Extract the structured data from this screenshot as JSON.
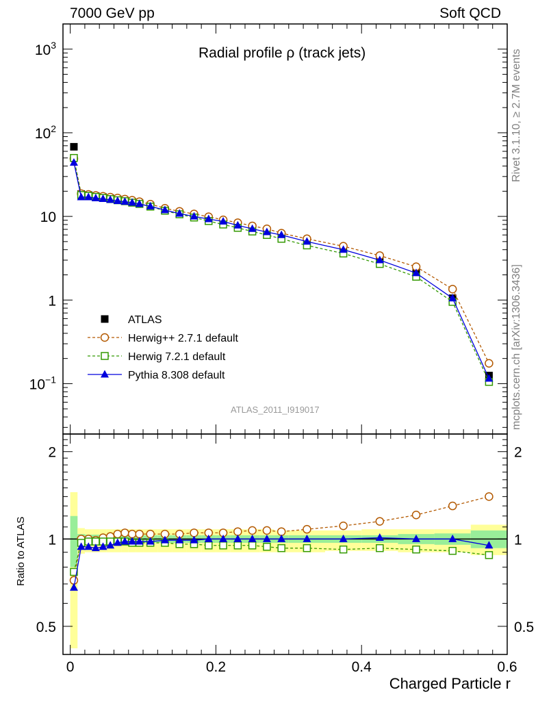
{
  "header": {
    "left": "7000 GeV pp",
    "right": "Soft QCD"
  },
  "side_texts": {
    "rivet": "Rivet 3.1.10, ≥ 2.7M events",
    "source": "mcplots.cern.ch [arXiv:1306.3436]"
  },
  "chart_data": [
    {
      "type": "line",
      "title": "Radial profile ρ (track jets)",
      "analysis_label": "ATLAS_2011_I919017",
      "xlabel": "",
      "ylabel": "",
      "yscale": "log",
      "ylim": [
        0.025,
        2000
      ],
      "xlim": [
        -0.01,
        0.6
      ],
      "legend_position": "bottom-left",
      "x": [
        0.005,
        0.015,
        0.025,
        0.035,
        0.045,
        0.055,
        0.065,
        0.075,
        0.085,
        0.095,
        0.11,
        0.13,
        0.15,
        0.17,
        0.19,
        0.21,
        0.23,
        0.25,
        0.27,
        0.29,
        0.325,
        0.375,
        0.425,
        0.475,
        0.525,
        0.575
      ],
      "series": [
        {
          "name": "ATLAS",
          "color": "#000000",
          "marker": "square-filled",
          "values": [
            68,
            18.5,
            18.0,
            17.5,
            17.0,
            16.5,
            16.0,
            15.5,
            15.0,
            14.5,
            13.5,
            12.0,
            11.0,
            10.2,
            9.4,
            8.7,
            7.9,
            7.2,
            6.6,
            6.0,
            5.0,
            4.0,
            3.0,
            2.1,
            1.05,
            0.125
          ]
        },
        {
          "name": "Herwig++ 2.7.1 default",
          "color": "#b35900",
          "marker": "circle-open",
          "dash": true,
          "values": [
            49,
            18.7,
            18.3,
            17.8,
            17.4,
            17.0,
            16.6,
            16.1,
            15.6,
            15.0,
            14.0,
            12.5,
            11.5,
            10.7,
            9.9,
            9.1,
            8.4,
            7.7,
            7.1,
            6.3,
            5.4,
            4.4,
            3.4,
            2.5,
            1.35,
            0.175
          ]
        },
        {
          "name": "Herwig 7.2.1 default",
          "color": "#339900",
          "marker": "square-open",
          "dash": true,
          "values": [
            50,
            18.0,
            17.6,
            17.1,
            16.6,
            16.1,
            15.6,
            15.2,
            14.6,
            14.1,
            13.1,
            11.7,
            10.6,
            9.7,
            8.8,
            8.0,
            7.3,
            6.6,
            6.0,
            5.4,
            4.5,
            3.6,
            2.7,
            1.9,
            0.95,
            0.105
          ]
        },
        {
          "name": "Pythia 8.308 default",
          "color": "#0000dd",
          "marker": "triangle-filled",
          "values": [
            44,
            17.0,
            17.0,
            16.5,
            16.2,
            15.8,
            15.3,
            15.0,
            14.6,
            14.1,
            13.2,
            11.9,
            10.8,
            10.0,
            9.3,
            8.7,
            7.8,
            7.1,
            6.5,
            6.0,
            5.0,
            4.0,
            3.0,
            2.1,
            1.05,
            0.115
          ]
        }
      ]
    },
    {
      "type": "line",
      "ylabel": "Ratio to ATLAS",
      "xlabel": "Charged Particle r",
      "yscale": "log",
      "ylim": [
        0.4,
        2.3
      ],
      "yticks": [
        0.5,
        1,
        2
      ],
      "xticks": [
        0,
        0.2,
        0.4,
        0.6
      ],
      "xlim": [
        -0.01,
        0.6
      ],
      "x": [
        0.005,
        0.015,
        0.025,
        0.035,
        0.045,
        0.055,
        0.065,
        0.075,
        0.085,
        0.095,
        0.11,
        0.13,
        0.15,
        0.17,
        0.19,
        0.21,
        0.23,
        0.25,
        0.27,
        0.29,
        0.325,
        0.375,
        0.425,
        0.475,
        0.525,
        0.575
      ],
      "bands": {
        "edges": [
          0,
          0.01,
          0.02,
          0.03,
          0.04,
          0.05,
          0.06,
          0.07,
          0.08,
          0.09,
          0.1,
          0.12,
          0.14,
          0.16,
          0.18,
          0.2,
          0.22,
          0.24,
          0.26,
          0.28,
          0.3,
          0.35,
          0.4,
          0.45,
          0.5,
          0.55,
          0.6
        ],
        "stat_lo": [
          0.8,
          0.96,
          0.965,
          0.965,
          0.965,
          0.965,
          0.965,
          0.97,
          0.97,
          0.97,
          0.97,
          0.97,
          0.97,
          0.97,
          0.97,
          0.97,
          0.97,
          0.97,
          0.97,
          0.97,
          0.97,
          0.97,
          0.97,
          0.96,
          0.955,
          0.93
        ],
        "stat_hi": [
          1.2,
          1.04,
          1.035,
          1.035,
          1.035,
          1.035,
          1.035,
          1.03,
          1.03,
          1.03,
          1.03,
          1.03,
          1.03,
          1.03,
          1.03,
          1.03,
          1.03,
          1.03,
          1.03,
          1.03,
          1.03,
          1.03,
          1.03,
          1.04,
          1.045,
          1.07
        ],
        "total_lo": [
          0.42,
          0.89,
          0.9,
          0.9,
          0.9,
          0.9,
          0.9,
          0.9,
          0.9,
          0.9,
          0.9,
          0.9,
          0.9,
          0.9,
          0.9,
          0.9,
          0.9,
          0.9,
          0.9,
          0.9,
          0.9,
          0.91,
          0.91,
          0.9,
          0.9,
          0.88
        ],
        "total_hi": [
          1.45,
          1.09,
          1.08,
          1.08,
          1.08,
          1.08,
          1.08,
          1.08,
          1.08,
          1.08,
          1.08,
          1.08,
          1.08,
          1.08,
          1.08,
          1.08,
          1.08,
          1.08,
          1.08,
          1.07,
          1.07,
          1.07,
          1.08,
          1.08,
          1.08,
          1.12
        ],
        "stat_color": "#99ee99",
        "total_color": "#ffff99"
      },
      "series": [
        {
          "name": "Herwig++ 2.7.1 default",
          "color": "#b35900",
          "marker": "circle-open",
          "dash": true,
          "values": [
            0.72,
            1.0,
            1.0,
            0.99,
            1.01,
            1.02,
            1.04,
            1.05,
            1.04,
            1.04,
            1.04,
            1.04,
            1.04,
            1.05,
            1.05,
            1.05,
            1.06,
            1.07,
            1.07,
            1.06,
            1.08,
            1.11,
            1.15,
            1.21,
            1.3,
            1.4
          ]
        },
        {
          "name": "Herwig 7.2.1 default",
          "color": "#339900",
          "marker": "square-open",
          "dash": true,
          "values": [
            0.77,
            0.97,
            0.98,
            0.98,
            0.98,
            0.98,
            0.98,
            0.98,
            0.97,
            0.97,
            0.97,
            0.97,
            0.96,
            0.96,
            0.95,
            0.95,
            0.95,
            0.95,
            0.94,
            0.93,
            0.93,
            0.92,
            0.93,
            0.92,
            0.91,
            0.88
          ]
        },
        {
          "name": "Pythia 8.308 default",
          "color": "#0000dd",
          "marker": "triangle-filled",
          "values": [
            0.68,
            0.94,
            0.94,
            0.93,
            0.94,
            0.95,
            0.97,
            0.98,
            0.98,
            0.98,
            0.98,
            0.99,
            0.99,
            0.99,
            1.0,
            1.0,
            1.0,
            1.0,
            1.0,
            1.0,
            1.0,
            1.0,
            1.01,
            1.0,
            1.0,
            0.95
          ]
        }
      ]
    }
  ]
}
